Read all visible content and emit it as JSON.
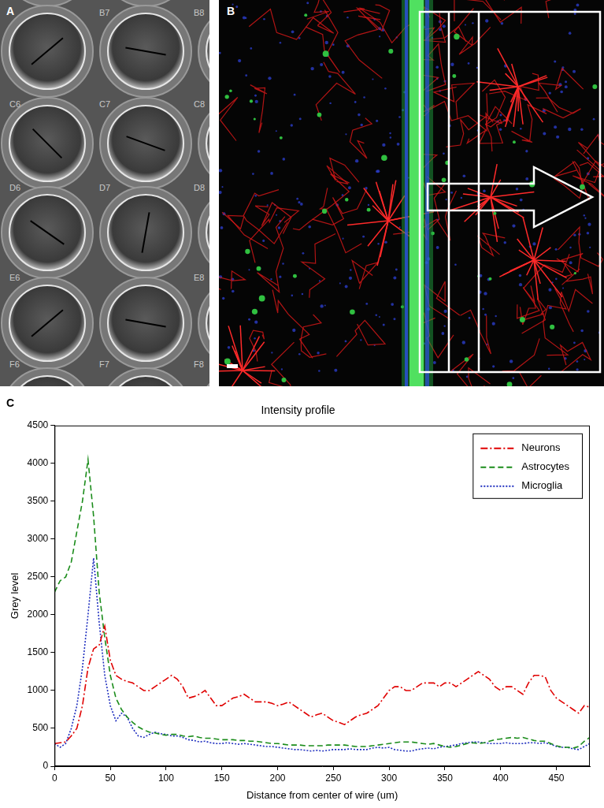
{
  "panel_labels": [
    "A",
    "B",
    "C"
  ],
  "plate_labels": [
    "B7",
    "B8",
    "C6",
    "C7",
    "C8",
    "D6",
    "D7",
    "D8",
    "E6",
    "E8",
    "F6",
    "F7",
    "F8"
  ],
  "chart_data": {
    "type": "line",
    "title": "Intensity profile",
    "x_label": "Distance from center of wire (um)",
    "y_label": "Grey level",
    "x": [
      0,
      5,
      10,
      15,
      20,
      25,
      30,
      35,
      40,
      45,
      50,
      55,
      60,
      65,
      70,
      75,
      80,
      85,
      90,
      95,
      100,
      105,
      110,
      115,
      120,
      125,
      130,
      135,
      140,
      145,
      150,
      155,
      160,
      165,
      170,
      175,
      180,
      185,
      190,
      195,
      200,
      205,
      210,
      215,
      220,
      225,
      230,
      235,
      240,
      245,
      250,
      255,
      260,
      265,
      270,
      275,
      280,
      285,
      290,
      295,
      300,
      305,
      310,
      315,
      320,
      325,
      330,
      335,
      340,
      345,
      350,
      355,
      360,
      365,
      370,
      375,
      380,
      385,
      390,
      395,
      400,
      405,
      410,
      415,
      420,
      425,
      430,
      435,
      440,
      445,
      450,
      455,
      460,
      465,
      470,
      475,
      480
    ],
    "series": [
      {
        "name": "Neurons",
        "color": "#e00000",
        "line_style": "dashdot",
        "values": [
          300,
          310,
          320,
          400,
          500,
          800,
          1300,
          1550,
          1600,
          1850,
          1400,
          1200,
          1150,
          1120,
          1100,
          1050,
          1000,
          1000,
          1050,
          1100,
          1150,
          1200,
          1150,
          1050,
          900,
          920,
          950,
          1000,
          900,
          800,
          800,
          850,
          900,
          920,
          950,
          900,
          850,
          850,
          850,
          830,
          800,
          820,
          850,
          800,
          750,
          700,
          650,
          680,
          700,
          650,
          600,
          580,
          550,
          600,
          650,
          680,
          700,
          750,
          800,
          900,
          1000,
          1050,
          1050,
          1000,
          1000,
          1050,
          1100,
          1100,
          1100,
          1050,
          1100,
          1100,
          1050,
          1100,
          1150,
          1200,
          1250,
          1200,
          1150,
          1050,
          1000,
          1050,
          1050,
          1000,
          950,
          1100,
          1200,
          1200,
          1180,
          1000,
          900,
          850,
          800,
          750,
          700,
          800,
          780
        ]
      },
      {
        "name": "Astrocytes",
        "color": "#1a8c1a",
        "line_style": "dashed",
        "values": [
          2300,
          2450,
          2500,
          2700,
          3100,
          3500,
          4050,
          3300,
          2300,
          1700,
          1200,
          900,
          750,
          650,
          580,
          520,
          480,
          450,
          440,
          420,
          410,
          420,
          420,
          400,
          390,
          400,
          380,
          370,
          370,
          360,
          350,
          350,
          350,
          340,
          340,
          330,
          330,
          320,
          310,
          300,
          300,
          290,
          280,
          280,
          280,
          270,
          270,
          270,
          270,
          280,
          280,
          280,
          280,
          270,
          260,
          260,
          260,
          270,
          280,
          290,
          300,
          310,
          320,
          320,
          320,
          310,
          300,
          290,
          300,
          280,
          260,
          250,
          260,
          280,
          300,
          310,
          300,
          310,
          330,
          350,
          360,
          370,
          380,
          370,
          380,
          360,
          340,
          330,
          330,
          300,
          270,
          250,
          250,
          240,
          260,
          330,
          380
        ]
      },
      {
        "name": "Microglia",
        "color": "#1f2fbf",
        "line_style": "dotted",
        "values": [
          300,
          250,
          300,
          500,
          800,
          1300,
          2000,
          2750,
          1900,
          1200,
          800,
          600,
          700,
          650,
          500,
          400,
          380,
          420,
          450,
          430,
          420,
          400,
          400,
          380,
          350,
          340,
          320,
          330,
          310,
          300,
          300,
          310,
          300,
          290,
          300,
          290,
          280,
          270,
          260,
          260,
          250,
          240,
          230,
          220,
          220,
          210,
          200,
          210,
          200,
          210,
          220,
          220,
          220,
          230,
          220,
          220,
          220,
          240,
          250,
          240,
          250,
          220,
          210,
          200,
          200,
          220,
          230,
          240,
          230,
          250,
          260,
          270,
          280,
          300,
          310,
          320,
          320,
          310,
          300,
          300,
          300,
          310,
          300,
          300,
          300,
          310,
          310,
          300,
          310,
          290,
          260,
          250,
          250,
          230,
          220,
          260,
          300
        ]
      }
    ],
    "xlim": [
      0,
      480
    ],
    "xticks": [
      0,
      50,
      100,
      150,
      200,
      250,
      300,
      350,
      400,
      450
    ],
    "ylim": [
      0,
      4500
    ],
    "yticks": [
      0,
      500,
      1000,
      1500,
      2000,
      2500,
      3000,
      3500,
      4000,
      4500
    ],
    "grid": false,
    "legend": "upper right"
  }
}
